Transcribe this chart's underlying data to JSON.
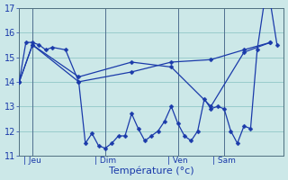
{
  "xlabel": "Température (°c)",
  "background_color": "#cce8e8",
  "grid_color": "#99cccc",
  "line_color": "#1a3aaa",
  "ylim": [
    11,
    17
  ],
  "yticks": [
    11,
    12,
    13,
    14,
    15,
    16,
    17
  ],
  "day_labels": [
    "| Jeu",
    "| Dim",
    "| Ven",
    "| Sam"
  ],
  "day_positions": [
    2,
    13,
    24,
    31
  ],
  "xlim": [
    0,
    40
  ],
  "series1_x": [
    0,
    1,
    2,
    3,
    4,
    5,
    7,
    9,
    10,
    11,
    12,
    13,
    14,
    15,
    16,
    17,
    18,
    19,
    20,
    21,
    22,
    23,
    24,
    25,
    26,
    27,
    28,
    29,
    30,
    31,
    32,
    33,
    34,
    35,
    36,
    37,
    38,
    39
  ],
  "series1_y": [
    14.0,
    15.6,
    15.6,
    15.5,
    15.3,
    15.4,
    15.3,
    14.0,
    11.5,
    11.9,
    11.4,
    11.3,
    11.5,
    11.8,
    11.8,
    12.7,
    12.1,
    11.6,
    11.8,
    12.0,
    12.4,
    13.0,
    12.3,
    11.8,
    11.6,
    12.0,
    13.3,
    12.9,
    13.0,
    12.9,
    12.0,
    11.5,
    12.2,
    12.1,
    15.3,
    17.1,
    17.2,
    15.5
  ],
  "series2_x": [
    0,
    2,
    9,
    17,
    23,
    29,
    34,
    38
  ],
  "series2_y": [
    14.0,
    15.5,
    14.0,
    14.4,
    14.8,
    14.9,
    15.3,
    15.6
  ],
  "series3_x": [
    0,
    2,
    9,
    17,
    23,
    29,
    34,
    38
  ],
  "series3_y": [
    14.0,
    15.5,
    14.2,
    14.8,
    14.6,
    13.0,
    15.2,
    15.6
  ]
}
